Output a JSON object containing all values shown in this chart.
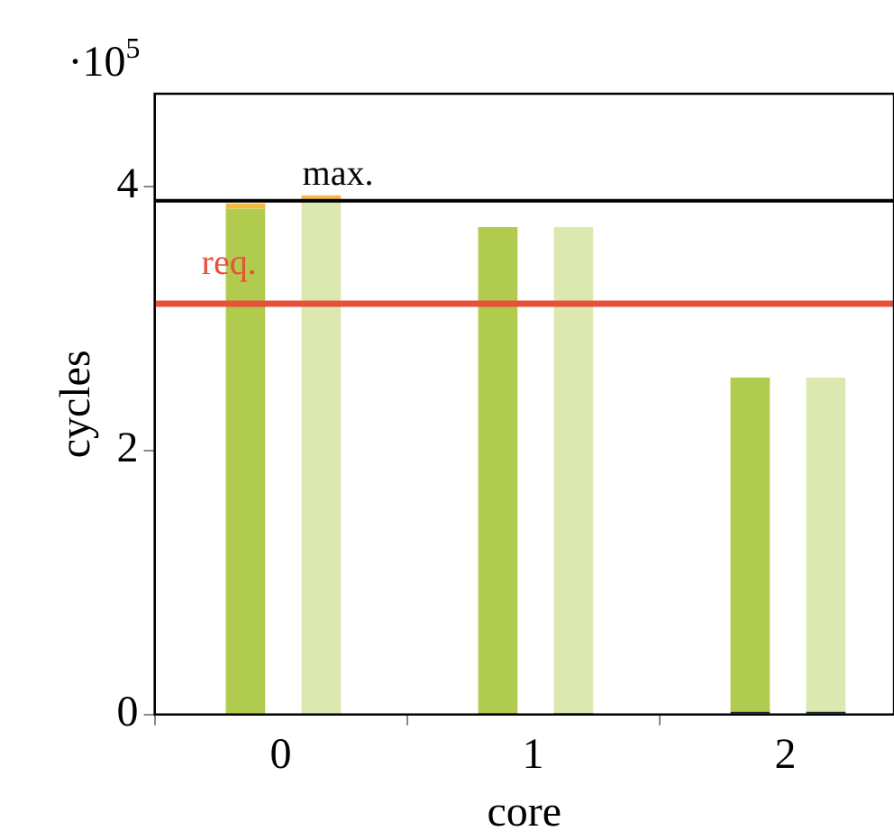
{
  "chart_data": {
    "type": "bar",
    "xlabel": "core",
    "ylabel": "cycles",
    "annotations": [
      "·10$^{5}$"
    ],
    "xlim": [
      -0.5,
      2.43
    ],
    "xticks": [
      0,
      1,
      2
    ],
    "ylim": [
      0,
      4.7
    ],
    "yticks": [
      0,
      2,
      4
    ],
    "grid": false,
    "legend": false,
    "series": [
      {
        "color": "#1f2a30",
        "x": [
          -0.14,
          0.86,
          1.86
        ],
        "values": [
          0,
          0.01,
          0.02
        ]
      },
      {
        "color": "#b0cb4e",
        "x": [
          -0.14,
          0.86,
          1.86
        ],
        "base": [
          0,
          0.01,
          0.02
        ],
        "values": [
          3.83,
          3.68,
          2.53
        ]
      },
      {
        "color": "#f5b942",
        "x": [
          -0.14
        ],
        "base": [
          3.83
        ],
        "values": [
          0.04
        ]
      },
      {
        "color": "#1f2a30",
        "x": [
          0.16,
          1.16,
          2.16
        ],
        "values": [
          0,
          0.01,
          0.02
        ]
      },
      {
        "color": "#dbe8b0",
        "x": [
          0.16,
          1.16,
          2.16
        ],
        "base": [
          0,
          0.01,
          0.02
        ],
        "values": [
          3.89,
          3.68,
          2.53
        ]
      },
      {
        "color": "#f5b942",
        "x": [
          0.16
        ],
        "base": [
          3.89
        ],
        "values": [
          0.04
        ]
      }
    ],
    "ref_lines": [
      {
        "axis": "y",
        "value": 3.89,
        "label": "max.",
        "color": "#000000"
      },
      {
        "axis": "y",
        "value": 3.11,
        "label": "req.",
        "color": "#e8503a"
      }
    ]
  }
}
